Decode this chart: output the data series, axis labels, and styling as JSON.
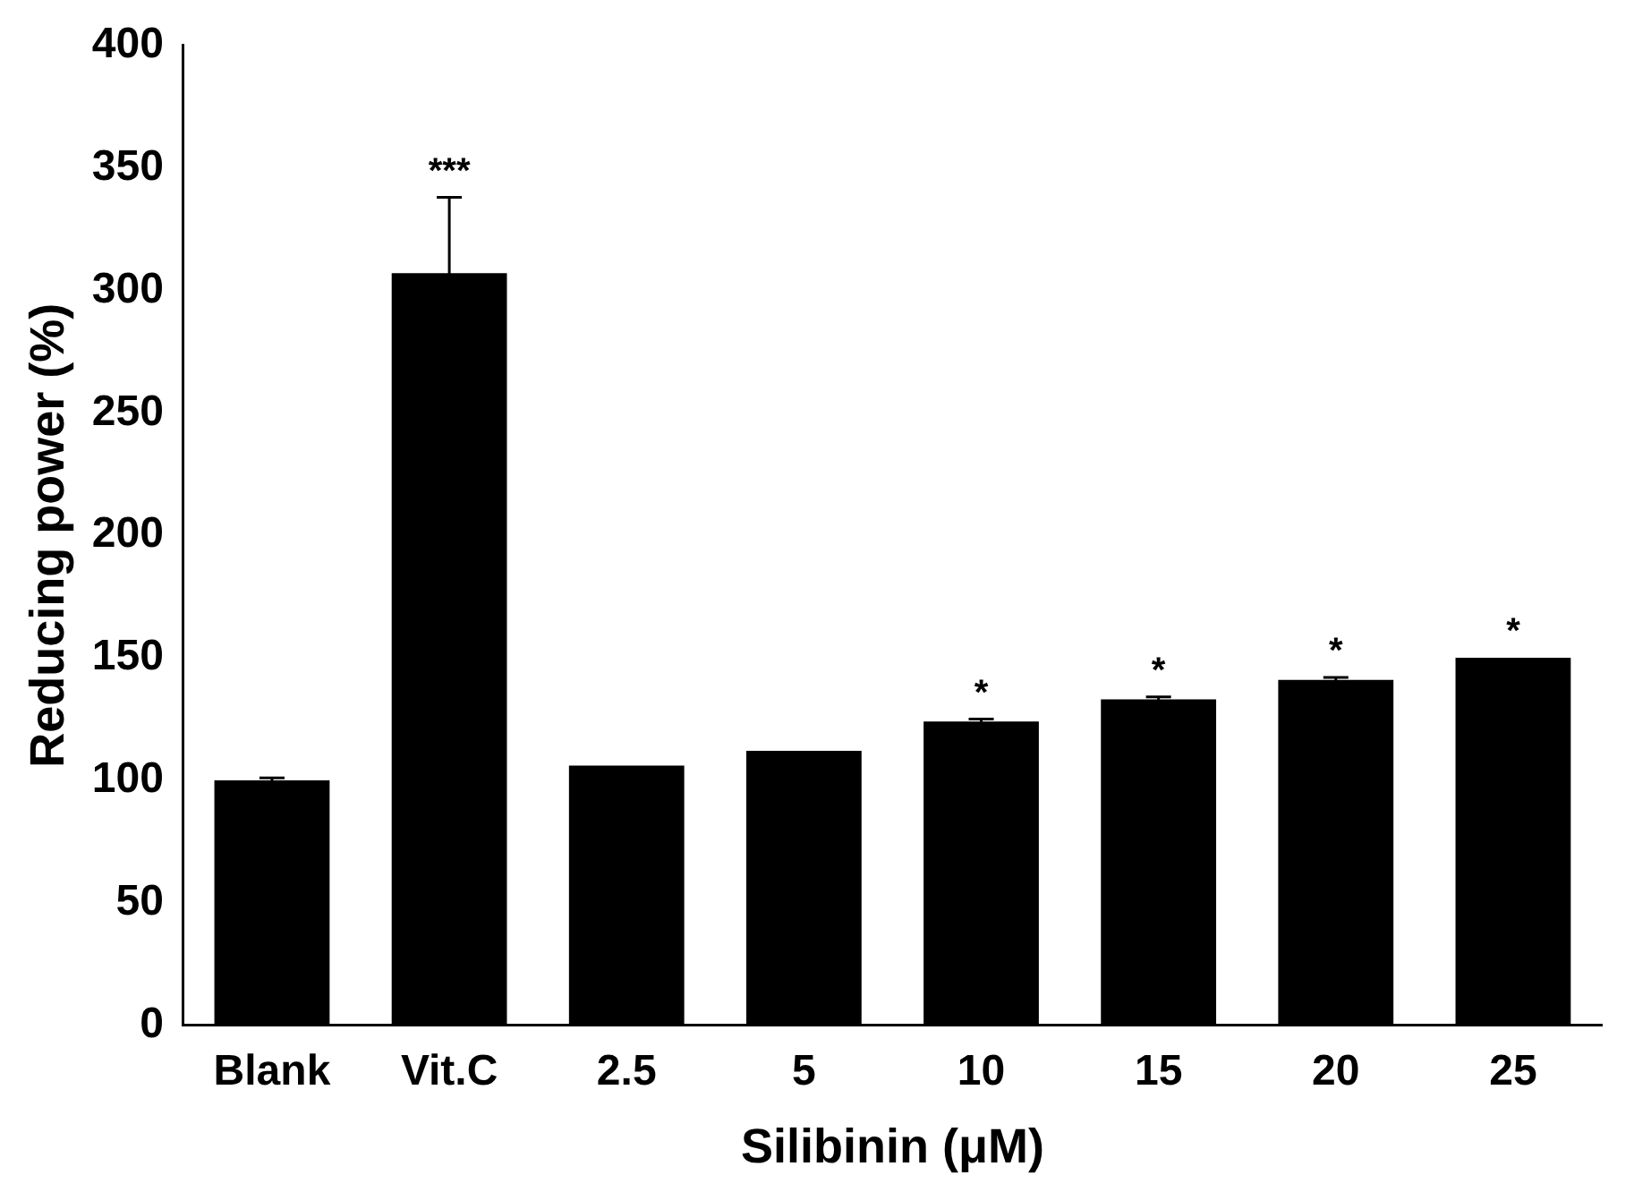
{
  "chart_data": {
    "type": "bar",
    "xlabel": "Silibinin (μM)",
    "ylabel": "Reducing power (%)",
    "categories": [
      "Blank",
      "Vit.C",
      "2.5",
      "5",
      "10",
      "15",
      "20",
      "25"
    ],
    "values": [
      100,
      307,
      106,
      112,
      124,
      133,
      141,
      150
    ],
    "errors": [
      1,
      31,
      null,
      null,
      1,
      1,
      1,
      null
    ],
    "color": "#000000",
    "ylim": [
      0,
      400
    ],
    "yticks": [
      0,
      50,
      100,
      150,
      200,
      250,
      300,
      350,
      400
    ],
    "grid": false,
    "legend": false,
    "annotations": [
      {
        "text": "***",
        "x": "Vit.C",
        "y": 338
      },
      {
        "text": "*",
        "x": "10",
        "y": 125
      },
      {
        "text": "*",
        "x": "15",
        "y": 134
      },
      {
        "text": "*",
        "x": "20",
        "y": 142
      },
      {
        "text": "*",
        "x": "25",
        "y": 150
      }
    ]
  }
}
